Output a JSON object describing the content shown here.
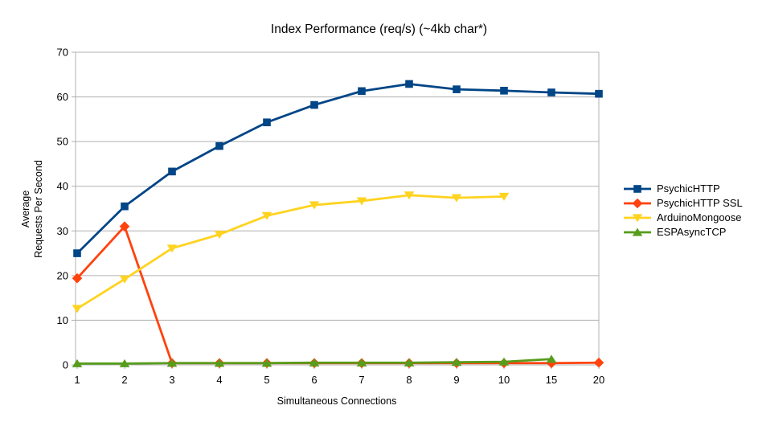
{
  "chart_data": {
    "type": "line",
    "title": "Index Performance (req/s) (~4kb char*)",
    "xlabel": "Simultaneous Connections",
    "ylabel": "Average Requests Per Second",
    "ylabel_lines": [
      "Average",
      "Requests Per Second"
    ],
    "categories": [
      "1",
      "2",
      "3",
      "4",
      "5",
      "6",
      "7",
      "8",
      "9",
      "10",
      "15",
      "20"
    ],
    "yticks": [
      0,
      10,
      20,
      30,
      40,
      50,
      60,
      70
    ],
    "ylim": [
      0,
      70
    ],
    "grid": "horizontal",
    "grid_color": "#b0b0b0",
    "text_color": "#000000",
    "background_color": "#ffffff",
    "legend_position": "right",
    "series": [
      {
        "name": "PsychicHTTP",
        "color": "#004586",
        "marker": "square",
        "values": [
          25.0,
          35.5,
          43.3,
          49.0,
          54.3,
          58.2,
          61.3,
          62.9,
          61.7,
          61.4,
          61.0,
          60.7
        ]
      },
      {
        "name": "PsychicHTTP SSL",
        "color": "#FF420E",
        "marker": "diamond",
        "values": [
          19.4,
          31.0,
          0.4,
          0.4,
          0.4,
          0.4,
          0.4,
          0.4,
          0.4,
          0.4,
          0.4,
          0.5
        ]
      },
      {
        "name": "ArduinoMongoose",
        "color": "#FFD320",
        "marker": "triangle-down",
        "values": [
          12.6,
          19.2,
          26.1,
          29.2,
          33.4,
          35.8,
          36.7,
          38.0,
          37.4,
          37.7,
          null,
          null
        ]
      },
      {
        "name": "ESPAsyncTCP",
        "color": "#579D1C",
        "marker": "triangle-up",
        "values": [
          0.3,
          0.3,
          0.4,
          0.4,
          0.4,
          0.5,
          0.5,
          0.5,
          0.6,
          0.7,
          1.3,
          null
        ]
      }
    ]
  }
}
